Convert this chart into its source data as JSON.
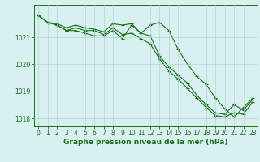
{
  "hours": [
    0,
    1,
    2,
    3,
    4,
    5,
    6,
    7,
    8,
    9,
    10,
    11,
    12,
    13,
    14,
    15,
    16,
    17,
    18,
    19,
    20,
    21,
    22,
    23
  ],
  "line1": [
    1021.8,
    1021.55,
    1021.5,
    1021.35,
    1021.45,
    1021.35,
    1021.3,
    1021.2,
    1021.5,
    1021.45,
    1021.5,
    1021.15,
    1021.05,
    1020.3,
    1019.9,
    1019.6,
    1019.3,
    1018.85,
    1018.5,
    1018.2,
    1018.15,
    1018.5,
    1018.3,
    1018.7
  ],
  "line2": [
    1021.8,
    1021.55,
    1021.45,
    1021.25,
    1021.35,
    1021.25,
    1021.25,
    1021.1,
    1021.35,
    1021.1,
    1021.15,
    1020.95,
    1020.75,
    1020.2,
    1019.75,
    1019.45,
    1019.1,
    1018.75,
    1018.4,
    1018.1,
    1018.05,
    1018.2,
    1018.15,
    1018.6
  ],
  "line3": [
    1021.8,
    1021.55,
    1021.45,
    1021.25,
    1021.25,
    1021.15,
    1021.05,
    1021.05,
    1021.25,
    1020.95,
    1021.45,
    1021.15,
    1021.45,
    1021.55,
    1021.25,
    1020.55,
    1020.0,
    1019.55,
    1019.25,
    1018.75,
    1018.35,
    1018.05,
    1018.4,
    1018.75
  ],
  "bg_color": "#d8f0f0",
  "grid_color": "#b0d8d0",
  "line_color": "#1a6e1a",
  "marker": "+",
  "xlabel": "Graphe pression niveau de la mer (hPa)",
  "ylim": [
    1017.7,
    1022.2
  ],
  "yticks": [
    1018,
    1019,
    1020,
    1021
  ],
  "xticks": [
    0,
    1,
    2,
    3,
    4,
    5,
    6,
    7,
    8,
    9,
    10,
    11,
    12,
    13,
    14,
    15,
    16,
    17,
    18,
    19,
    20,
    21,
    22,
    23
  ],
  "title_fontsize": 6.5,
  "tick_fontsize": 5.5,
  "lw": 0.8,
  "ms": 3
}
